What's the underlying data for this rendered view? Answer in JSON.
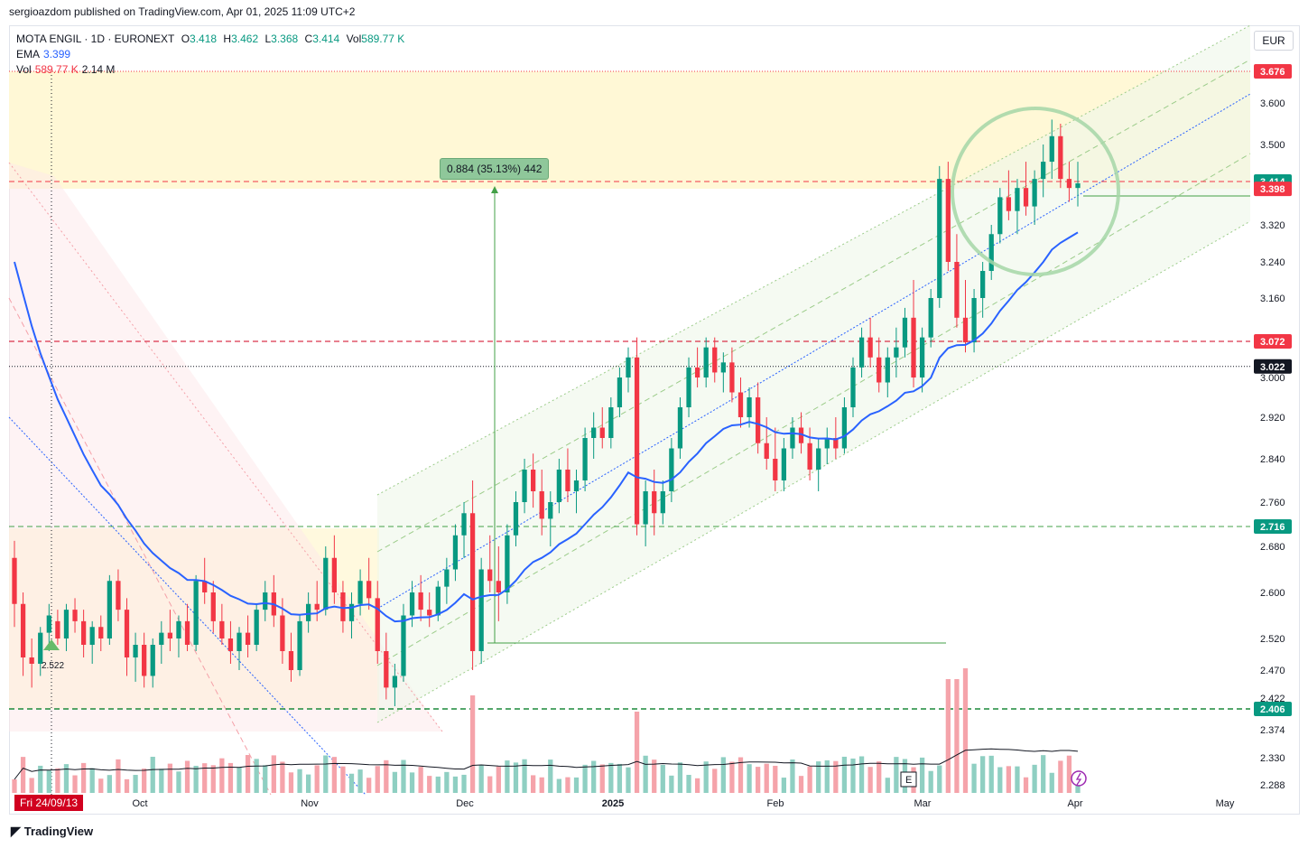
{
  "header": {
    "published_line": "sergioazdom published on TradingView.com, Apr 01, 2025 11:09 UTC+2"
  },
  "legend": {
    "symbol": "MOTA ENGIL · 1D · EURONEXT",
    "o_label": "O",
    "o_value": "3.418",
    "h_label": "H",
    "h_value": "3.462",
    "l_label": "L",
    "l_value": "3.368",
    "c_label": "C",
    "c_value": "3.414",
    "vol_label": "Vol",
    "vol_value": "589.77 K",
    "ema_label": "EMA",
    "ema_value": "3.399",
    "vol2_label": "Vol",
    "vol2_value": "589.77 K",
    "vol2_ma": "2.14 M"
  },
  "currency_button": "EUR",
  "crosshair_date": "Fri 24/09/13",
  "measure_label": "0.884 (35.13%) 442",
  "marker_label": "2.522",
  "earnings_label": "E",
  "footer": {
    "brand": "TradingView"
  },
  "colors": {
    "up": "#089981",
    "down": "#f23645",
    "ema": "#2962ff",
    "green_line": "#43a047"
  },
  "chart_data": {
    "type": "candlestick",
    "y_scale": {
      "min": 2.288,
      "max": 3.676
    },
    "y_ticks": [
      "3.600",
      "3.500",
      "3.320",
      "3.240",
      "3.160",
      "3.000",
      "2.920",
      "2.840",
      "2.760",
      "2.680",
      "2.600",
      "2.520",
      "2.470",
      "2.422",
      "2.374",
      "2.330",
      "2.288"
    ],
    "x_ticks": [
      "Oct",
      "Nov",
      "Dec",
      "2025",
      "Feb",
      "Mar",
      "Apr",
      "May"
    ],
    "price_labels": [
      {
        "value": "3.676",
        "color": "#f23645"
      },
      {
        "value": "3.414",
        "color": "#089981"
      },
      {
        "value": "3.398",
        "color": "#f23645"
      },
      {
        "value": "3.072",
        "color": "#f23645"
      },
      {
        "value": "3.022",
        "color": "#131722"
      },
      {
        "value": "2.716",
        "color": "#089981"
      },
      {
        "value": "2.406",
        "color": "#089981"
      }
    ],
    "horizontal_levels": [
      {
        "value": 3.676,
        "style": "dotted",
        "color": "#f23645"
      },
      {
        "value": 3.414,
        "style": "dashed",
        "color": "#f23645"
      },
      {
        "value": 3.072,
        "style": "dashed",
        "color": "#d1001f"
      },
      {
        "value": 3.022,
        "style": "dotted",
        "color": "#131722"
      },
      {
        "value": 2.716,
        "style": "dashed",
        "color": "#43a047"
      },
      {
        "value": 2.406,
        "style": "dashed",
        "color": "#1b8a3a"
      }
    ],
    "ohlc": [
      [
        2.66,
        2.69,
        2.54,
        2.58
      ],
      [
        2.58,
        2.6,
        2.46,
        2.49
      ],
      [
        2.49,
        2.52,
        2.44,
        2.48
      ],
      [
        2.48,
        2.54,
        2.46,
        2.53
      ],
      [
        2.53,
        2.58,
        2.5,
        2.56
      ],
      [
        2.55,
        2.57,
        2.51,
        2.52
      ],
      [
        2.52,
        2.58,
        2.5,
        2.57
      ],
      [
        2.57,
        2.59,
        2.53,
        2.55
      ],
      [
        2.55,
        2.57,
        2.49,
        2.51
      ],
      [
        2.51,
        2.55,
        2.48,
        2.54
      ],
      [
        2.54,
        2.56,
        2.5,
        2.52
      ],
      [
        2.52,
        2.63,
        2.51,
        2.62
      ],
      [
        2.62,
        2.64,
        2.55,
        2.57
      ],
      [
        2.57,
        2.59,
        2.46,
        2.49
      ],
      [
        2.49,
        2.53,
        2.45,
        2.51
      ],
      [
        2.51,
        2.53,
        2.44,
        2.46
      ],
      [
        2.46,
        2.52,
        2.44,
        2.51
      ],
      [
        2.51,
        2.55,
        2.48,
        2.53
      ],
      [
        2.53,
        2.57,
        2.5,
        2.52
      ],
      [
        2.52,
        2.56,
        2.49,
        2.55
      ],
      [
        2.55,
        2.58,
        2.5,
        2.51
      ],
      [
        2.51,
        2.63,
        2.5,
        2.62
      ],
      [
        2.62,
        2.66,
        2.58,
        2.6
      ],
      [
        2.6,
        2.62,
        2.53,
        2.55
      ],
      [
        2.55,
        2.58,
        2.51,
        2.52
      ],
      [
        2.52,
        2.55,
        2.48,
        2.5
      ],
      [
        2.5,
        2.54,
        2.47,
        2.53
      ],
      [
        2.53,
        2.56,
        2.49,
        2.51
      ],
      [
        2.51,
        2.58,
        2.5,
        2.57
      ],
      [
        2.57,
        2.62,
        2.55,
        2.6
      ],
      [
        2.6,
        2.63,
        2.54,
        2.56
      ],
      [
        2.56,
        2.59,
        2.48,
        2.5
      ],
      [
        2.5,
        2.53,
        2.45,
        2.47
      ],
      [
        2.47,
        2.56,
        2.46,
        2.55
      ],
      [
        2.55,
        2.6,
        2.53,
        2.58
      ],
      [
        2.58,
        2.62,
        2.55,
        2.57
      ],
      [
        2.57,
        2.68,
        2.56,
        2.66
      ],
      [
        2.66,
        2.7,
        2.58,
        2.6
      ],
      [
        2.6,
        2.62,
        2.53,
        2.55
      ],
      [
        2.55,
        2.6,
        2.52,
        2.58
      ],
      [
        2.58,
        2.64,
        2.56,
        2.62
      ],
      [
        2.62,
        2.66,
        2.57,
        2.59
      ],
      [
        2.59,
        2.62,
        2.48,
        2.5
      ],
      [
        2.5,
        2.53,
        2.42,
        2.44
      ],
      [
        2.44,
        2.48,
        2.41,
        2.46
      ],
      [
        2.46,
        2.58,
        2.45,
        2.56
      ],
      [
        2.56,
        2.62,
        2.54,
        2.6
      ],
      [
        2.6,
        2.63,
        2.55,
        2.57
      ],
      [
        2.57,
        2.6,
        2.54,
        2.56
      ],
      [
        2.56,
        2.62,
        2.55,
        2.61
      ],
      [
        2.61,
        2.66,
        2.58,
        2.64
      ],
      [
        2.64,
        2.72,
        2.62,
        2.7
      ],
      [
        2.7,
        2.76,
        2.66,
        2.74
      ],
      [
        2.74,
        2.8,
        2.47,
        2.5
      ],
      [
        2.5,
        2.66,
        2.48,
        2.64
      ],
      [
        2.64,
        2.7,
        2.6,
        2.62
      ],
      [
        2.62,
        2.68,
        2.55,
        2.6
      ],
      [
        2.6,
        2.72,
        2.58,
        2.7
      ],
      [
        2.7,
        2.78,
        2.68,
        2.76
      ],
      [
        2.76,
        2.84,
        2.74,
        2.82
      ],
      [
        2.82,
        2.85,
        2.75,
        2.78
      ],
      [
        2.78,
        2.82,
        2.7,
        2.73
      ],
      [
        2.73,
        2.78,
        2.68,
        2.76
      ],
      [
        2.76,
        2.84,
        2.74,
        2.82
      ],
      [
        2.82,
        2.86,
        2.76,
        2.78
      ],
      [
        2.78,
        2.82,
        2.74,
        2.8
      ],
      [
        2.8,
        2.9,
        2.78,
        2.88
      ],
      [
        2.88,
        2.93,
        2.84,
        2.9
      ],
      [
        2.9,
        2.94,
        2.86,
        2.88
      ],
      [
        2.88,
        2.96,
        2.86,
        2.94
      ],
      [
        2.94,
        3.02,
        2.92,
        3.0
      ],
      [
        3.0,
        3.06,
        2.97,
        3.04
      ],
      [
        3.04,
        3.08,
        2.7,
        2.72
      ],
      [
        2.72,
        2.8,
        2.68,
        2.78
      ],
      [
        2.78,
        2.82,
        2.7,
        2.74
      ],
      [
        2.74,
        2.8,
        2.72,
        2.78
      ],
      [
        2.78,
        2.88,
        2.76,
        2.86
      ],
      [
        2.86,
        2.96,
        2.84,
        2.94
      ],
      [
        2.94,
        3.04,
        2.92,
        3.02
      ],
      [
        3.02,
        3.06,
        2.98,
        3.0
      ],
      [
        3.0,
        3.08,
        2.98,
        3.06
      ],
      [
        3.06,
        3.08,
        2.99,
        3.01
      ],
      [
        3.01,
        3.05,
        2.97,
        3.03
      ],
      [
        3.03,
        3.06,
        2.95,
        2.97
      ],
      [
        2.97,
        3.0,
        2.9,
        2.92
      ],
      [
        2.92,
        2.98,
        2.9,
        2.96
      ],
      [
        2.96,
        2.99,
        2.85,
        2.87
      ],
      [
        2.87,
        2.92,
        2.82,
        2.84
      ],
      [
        2.84,
        2.9,
        2.78,
        2.8
      ],
      [
        2.8,
        2.88,
        2.78,
        2.86
      ],
      [
        2.86,
        2.92,
        2.84,
        2.9
      ],
      [
        2.9,
        2.93,
        2.85,
        2.87
      ],
      [
        2.87,
        2.9,
        2.8,
        2.82
      ],
      [
        2.82,
        2.88,
        2.78,
        2.86
      ],
      [
        2.86,
        2.9,
        2.83,
        2.88
      ],
      [
        2.88,
        2.92,
        2.84,
        2.86
      ],
      [
        2.86,
        2.96,
        2.85,
        2.94
      ],
      [
        2.94,
        3.04,
        2.92,
        3.02
      ],
      [
        3.02,
        3.1,
        3.0,
        3.08
      ],
      [
        3.08,
        3.12,
        3.02,
        3.04
      ],
      [
        3.04,
        3.08,
        2.97,
        2.99
      ],
      [
        2.99,
        3.06,
        2.96,
        3.04
      ],
      [
        3.04,
        3.1,
        3.0,
        3.06
      ],
      [
        3.06,
        3.14,
        3.04,
        3.12
      ],
      [
        3.12,
        3.2,
        2.98,
        3.0
      ],
      [
        3.0,
        3.1,
        2.97,
        3.08
      ],
      [
        3.08,
        3.18,
        3.06,
        3.16
      ],
      [
        3.16,
        3.45,
        3.14,
        3.42
      ],
      [
        3.42,
        3.46,
        3.22,
        3.24
      ],
      [
        3.24,
        3.3,
        3.1,
        3.12
      ],
      [
        3.12,
        3.2,
        3.05,
        3.07
      ],
      [
        3.07,
        3.18,
        3.05,
        3.16
      ],
      [
        3.16,
        3.24,
        3.12,
        3.22
      ],
      [
        3.22,
        3.32,
        3.2,
        3.3
      ],
      [
        3.3,
        3.4,
        3.28,
        3.38
      ],
      [
        3.38,
        3.44,
        3.33,
        3.35
      ],
      [
        3.35,
        3.42,
        3.3,
        3.4
      ],
      [
        3.4,
        3.46,
        3.34,
        3.36
      ],
      [
        3.36,
        3.44,
        3.32,
        3.42
      ],
      [
        3.42,
        3.5,
        3.38,
        3.46
      ],
      [
        3.46,
        3.56,
        3.42,
        3.52
      ],
      [
        3.52,
        3.55,
        3.4,
        3.42
      ],
      [
        3.42,
        3.46,
        3.37,
        3.4
      ],
      [
        3.4,
        3.46,
        3.36,
        3.41
      ]
    ],
    "ema_note": "EMA line plotted in blue"
  }
}
